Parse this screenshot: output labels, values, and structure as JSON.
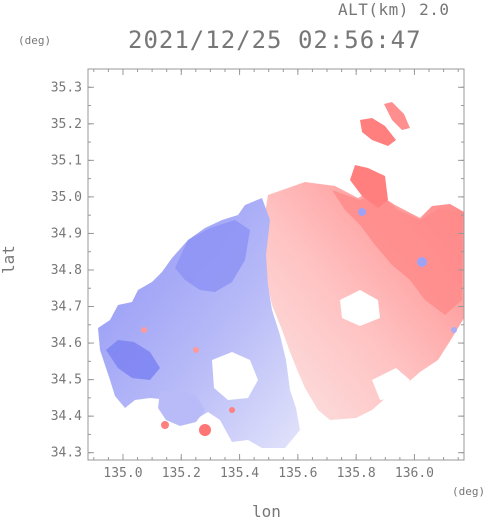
{
  "header": {
    "altitude_label": "ALT(km) 2.0",
    "timestamp": "2021/12/25 02:56:47"
  },
  "axes": {
    "y_unit": "(deg)",
    "x_unit": "(deg)",
    "y_label": "lat",
    "x_label": "lon"
  },
  "chart_data": {
    "type": "heatmap",
    "x_range": [
      134.88,
      136.17
    ],
    "y_range": [
      34.28,
      35.35
    ],
    "x_ticks": [
      "135.0",
      "135.2",
      "135.4",
      "135.6",
      "135.8",
      "136.0"
    ],
    "y_ticks": [
      "34.3",
      "34.4",
      "34.5",
      "34.6",
      "34.7",
      "34.8",
      "34.9",
      "35.0",
      "35.1",
      "35.2",
      "35.3"
    ],
    "colors": {
      "approaching": "#8a8ff5",
      "receding": "#ff7f7f",
      "axis": "#999999"
    }
  }
}
